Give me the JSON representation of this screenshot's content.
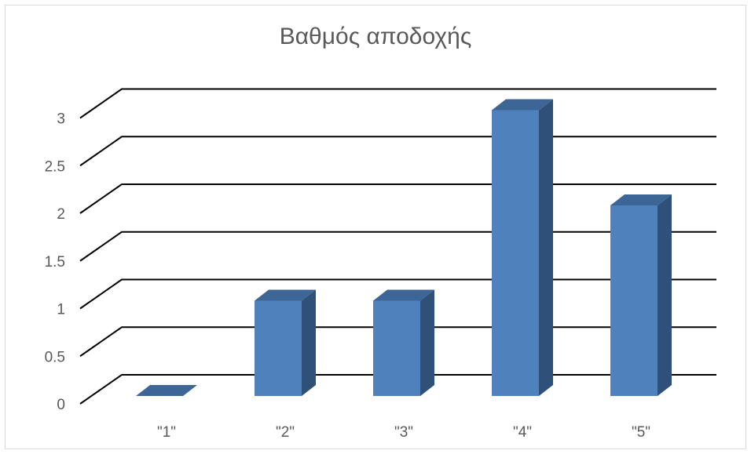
{
  "chart_data": {
    "type": "bar",
    "title": "Βαθμός αποδοχής",
    "categories": [
      "\"1\"",
      "\"2\"",
      "\"3\"",
      "\"4\"",
      "\"5\""
    ],
    "values": [
      0,
      1,
      1,
      3,
      2
    ],
    "ylim": [
      0,
      3
    ],
    "yticks": [
      "0",
      "0.5",
      "1",
      "1.5",
      "2",
      "2.5",
      "3"
    ],
    "grid": true,
    "style_3d": true,
    "colors": {
      "front": "#4f81bd",
      "side": "#2f5079",
      "top": "#3d6596",
      "grid": "#000000",
      "text": "#595959"
    }
  }
}
